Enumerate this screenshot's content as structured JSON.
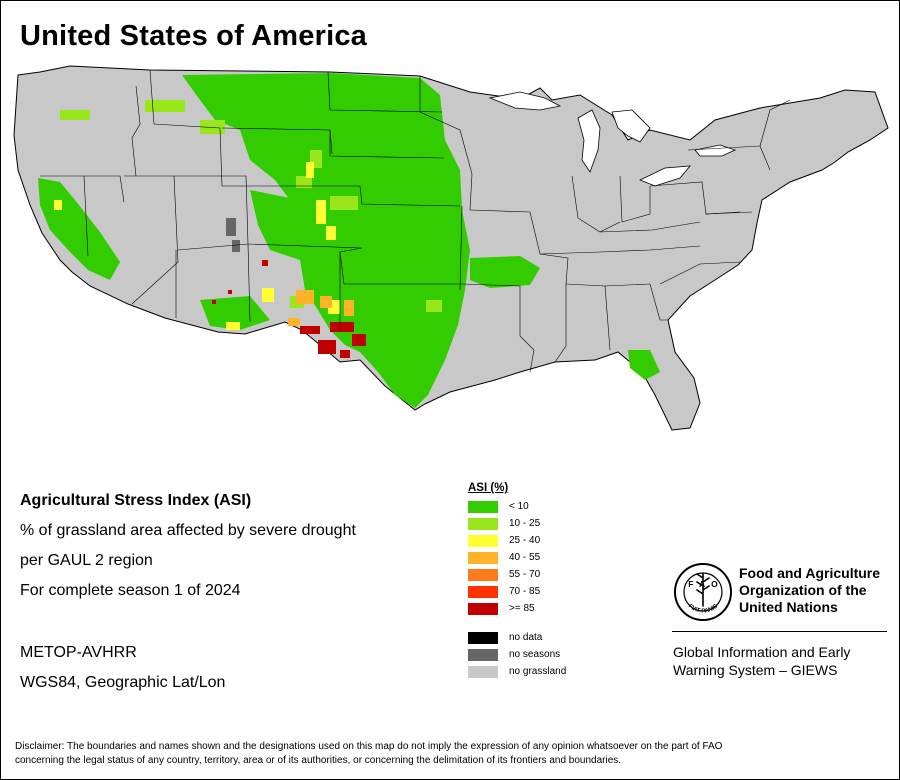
{
  "title": "United States of America",
  "info": {
    "heading": "Agricultural Stress Index (ASI)",
    "line1": "% of grassland area affected by severe drought",
    "line2": "per GAUL 2 region",
    "line3": "For complete season 1 of 2024",
    "sensor": "METOP-AVHRR",
    "projection": "WGS84, Geographic Lat/Lon"
  },
  "legend": {
    "title": "ASI (%)",
    "classes": [
      {
        "label": "< 10",
        "color": "#33cc00"
      },
      {
        "label": "10 - 25",
        "color": "#99e61a"
      },
      {
        "label": "25 - 40",
        "color": "#ffff33"
      },
      {
        "label": "40 - 55",
        "color": "#ffb329"
      },
      {
        "label": "55 - 70",
        "color": "#ff7a1a"
      },
      {
        "label": "70 - 85",
        "color": "#ff3300"
      },
      {
        "label": ">= 85",
        "color": "#c00000"
      }
    ],
    "other": [
      {
        "label": "no data",
        "color": "#000000"
      },
      {
        "label": "no seasons",
        "color": "#666666"
      },
      {
        "label": "no grassland",
        "color": "#c8c8c8"
      }
    ]
  },
  "org": {
    "logo_text": "FAO",
    "logo_motto": "FIAT PANIS",
    "name_line1": "Food and Agriculture",
    "name_line2": "Organization of the",
    "name_line3": "United Nations",
    "system_line1": "Global Information and Early",
    "system_line2": "Warning System – GIEWS"
  },
  "disclaimer_line1": "Disclaimer: The boundaries and names shown and the designations used on this map do not imply the expression of any opinion whatsoever on the part of FAO",
  "disclaimer_line2": "concerning the legal status of any country, territory, area or of its authorities, or concerning the delimitation of its frontiers and boundaries.",
  "map_colors": {
    "land": "#c8c8c8",
    "green": "#33cc00",
    "lightgreen": "#99e61a",
    "yellow": "#ffff33",
    "orange": "#ffb329",
    "darkorange": "#ff7a1a",
    "red": "#ff3300",
    "darkred": "#c00000",
    "noseason": "#666666"
  }
}
